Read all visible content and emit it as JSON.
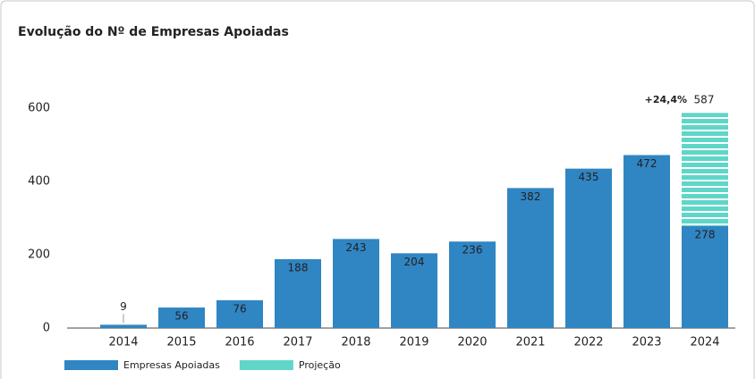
{
  "chart_data": {
    "type": "stacked_bar",
    "title": "Evolução do Nº de Empresas Apoiadas",
    "categories": [
      "2014",
      "2015",
      "2016",
      "2017",
      "2018",
      "2019",
      "2020",
      "2021",
      "2022",
      "2023",
      "2024"
    ],
    "series": [
      {
        "name": "Empresas Apoiadas",
        "color": "#3085c3",
        "values": [
          9,
          56,
          76,
          188,
          243,
          204,
          236,
          382,
          435,
          472,
          278
        ]
      },
      {
        "name": "Projeção",
        "color": "#5fd6c8",
        "values": [
          null,
          null,
          null,
          null,
          null,
          null,
          null,
          null,
          null,
          null,
          309
        ]
      }
    ],
    "annotations": [
      "+24,4%",
      "587"
    ],
    "ylim": [
      0,
      600
    ],
    "yticks": [
      0,
      200,
      400,
      600
    ],
    "grid": false
  }
}
